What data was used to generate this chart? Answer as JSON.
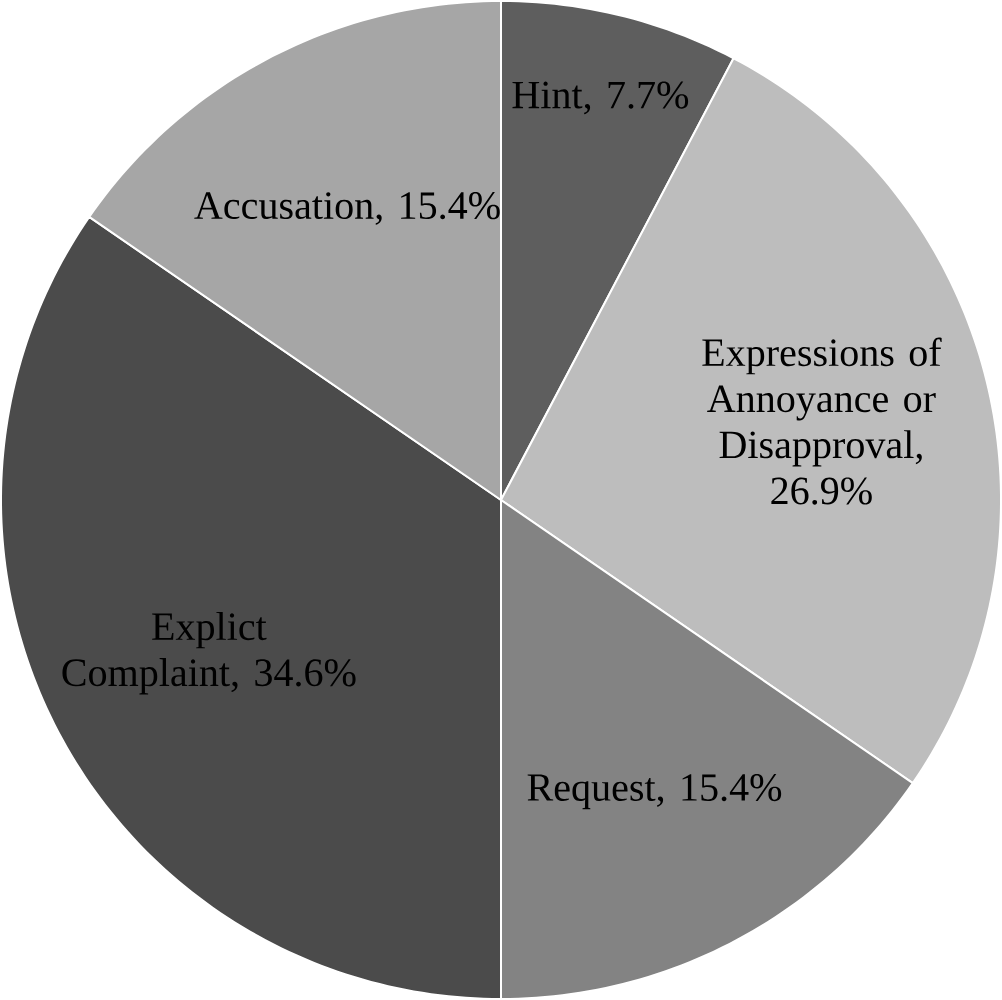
{
  "chart_data": {
    "type": "pie",
    "categories": [
      "Hint",
      "Expressions of Annoyance or Disapproval",
      "Request",
      "Explict Complaint",
      "Accusation"
    ],
    "values": [
      7.7,
      26.9,
      15.4,
      34.6,
      15.4
    ],
    "colors": [
      "#5e5e5e",
      "#bdbdbd",
      "#838383",
      "#4b4b4b",
      "#a6a6a6"
    ],
    "value_labels": [
      ", 7.7%",
      ", 26.9%",
      ", 15.4%",
      ", 34.6%",
      ", 15.4%"
    ]
  }
}
